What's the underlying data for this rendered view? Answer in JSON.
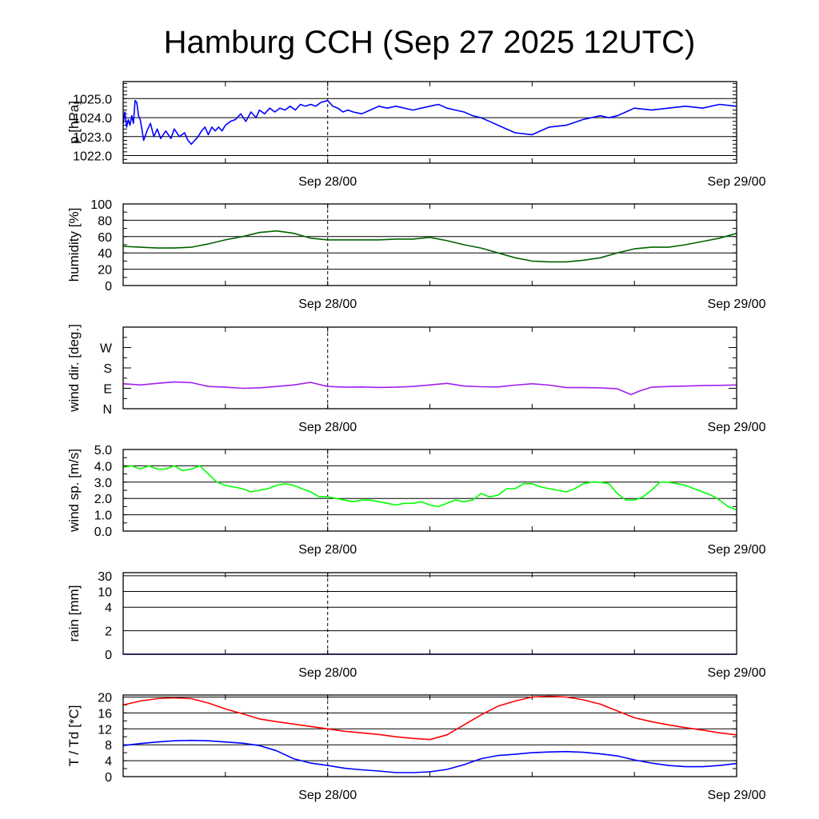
{
  "title": "Hamburg CCH (Sep 27 2025 12UTC)",
  "x_tick_labels": [
    "Sep 28/00",
    "Sep 29/00"
  ],
  "chart_data": [
    {
      "type": "line",
      "ylabel": "p [hPa]",
      "x_unit": "hours after Sep 27 12UTC",
      "xlim": [
        0,
        36
      ],
      "ylim": [
        1021.6,
        1025.9
      ],
      "yticks": [
        1022.0,
        1023.0,
        1024.0,
        1025.0
      ],
      "ytick_labels": [
        "1022.0",
        "1023.0",
        "1024.0",
        "1025.0"
      ],
      "grid": true,
      "series": [
        {
          "color": "#0000ff",
          "x": [
            0,
            0.1,
            0.2,
            0.3,
            0.4,
            0.5,
            0.6,
            0.7,
            0.8,
            0.9,
            1.0,
            1.1,
            1.2,
            1.4,
            1.6,
            1.8,
            2.0,
            2.2,
            2.5,
            2.8,
            3.0,
            3.3,
            3.6,
            3.8,
            4.0,
            4.2,
            4.4,
            4.6,
            4.8,
            5.0,
            5.2,
            5.4,
            5.6,
            5.8,
            6.0,
            6.3,
            6.6,
            6.9,
            7.2,
            7.5,
            7.8,
            8.0,
            8.3,
            8.6,
            8.9,
            9.2,
            9.5,
            9.8,
            10.1,
            10.4,
            10.7,
            11.0,
            11.3,
            11.6,
            12.0,
            12.3,
            12.6,
            12.9,
            13.2,
            13.5,
            14.0,
            14.5,
            15.0,
            15.5,
            16.0,
            16.5,
            17.0,
            17.5,
            18.0,
            18.5,
            19.0,
            19.5,
            20.0,
            20.5,
            21.0,
            21.5,
            22.0,
            23.0,
            24.0,
            25.0,
            26.0,
            27.0,
            28.0,
            28.5,
            29.0,
            29.5,
            30.0,
            31.0,
            32.0,
            33.0,
            34.0,
            35.0,
            36.0
          ],
          "y": [
            1023.7,
            1024.3,
            1023.5,
            1023.9,
            1023.6,
            1024.1,
            1023.7,
            1024.9,
            1024.8,
            1024.1,
            1023.9,
            1023.4,
            1022.8,
            1023.3,
            1023.7,
            1023.0,
            1023.4,
            1022.9,
            1023.3,
            1022.9,
            1023.4,
            1023.0,
            1023.2,
            1022.8,
            1022.6,
            1022.8,
            1023.0,
            1023.3,
            1023.5,
            1023.1,
            1023.5,
            1023.3,
            1023.5,
            1023.3,
            1023.6,
            1023.8,
            1023.9,
            1024.2,
            1023.8,
            1024.3,
            1024.0,
            1024.4,
            1024.2,
            1024.5,
            1024.3,
            1024.5,
            1024.4,
            1024.6,
            1024.4,
            1024.7,
            1024.6,
            1024.7,
            1024.6,
            1024.8,
            1024.9,
            1024.6,
            1024.5,
            1024.3,
            1024.4,
            1024.3,
            1024.2,
            1024.4,
            1024.6,
            1024.5,
            1024.6,
            1024.5,
            1024.4,
            1024.5,
            1024.6,
            1024.7,
            1024.5,
            1024.4,
            1024.3,
            1024.1,
            1024.0,
            1023.8,
            1023.6,
            1023.2,
            1023.1,
            1023.5,
            1023.6,
            1023.9,
            1024.1,
            1024.0,
            1024.1,
            1024.3,
            1024.5,
            1024.4,
            1024.5,
            1024.6,
            1024.5,
            1024.7,
            1024.6
          ]
        }
      ]
    },
    {
      "type": "line",
      "ylabel": "humidity [%]",
      "x_unit": "hours after Sep 27 12UTC",
      "xlim": [
        0,
        36
      ],
      "ylim": [
        0,
        100
      ],
      "yticks": [
        0,
        20,
        40,
        60,
        80,
        100
      ],
      "ytick_labels": [
        "0",
        "20",
        "40",
        "60",
        "80",
        "100"
      ],
      "grid": true,
      "series": [
        {
          "color": "#006400",
          "x": [
            0,
            1,
            2,
            3,
            4,
            5,
            6,
            7,
            8,
            9,
            10,
            11,
            12,
            13,
            14,
            15,
            16,
            17,
            18,
            19,
            20,
            21,
            22,
            23,
            24,
            25,
            26,
            27,
            28,
            29,
            30,
            31,
            32,
            33,
            34,
            35,
            36
          ],
          "y": [
            48,
            47,
            46,
            46,
            47,
            51,
            56,
            60,
            65,
            67,
            64,
            58,
            56,
            56,
            56,
            56,
            57,
            57,
            59,
            55,
            50,
            46,
            40,
            34,
            30,
            29,
            29,
            31,
            34,
            40,
            45,
            47,
            47,
            50,
            54,
            58,
            64
          ]
        }
      ]
    },
    {
      "type": "line",
      "ylabel": "wind dir. [deg.]",
      "x_unit": "hours after Sep 27 12UTC",
      "xlim": [
        0,
        36
      ],
      "ylim": [
        0,
        360
      ],
      "yticks": [
        0,
        90,
        180,
        270
      ],
      "ytick_labels": [
        "N",
        "E",
        "S",
        "W"
      ],
      "grid": false,
      "series": [
        {
          "color": "#a020f0",
          "x": [
            0,
            1,
            2,
            3,
            4,
            5,
            6,
            7,
            8,
            9,
            10,
            11,
            12,
            13,
            14,
            15,
            16,
            17,
            18,
            19,
            20,
            21,
            22,
            23,
            24,
            25,
            26,
            27,
            28,
            29,
            29.8,
            30.3,
            31,
            32,
            33,
            34,
            35,
            36
          ],
          "y": [
            110,
            105,
            112,
            118,
            115,
            98,
            95,
            90,
            92,
            98,
            105,
            116,
            98,
            95,
            96,
            94,
            95,
            98,
            105,
            112,
            100,
            97,
            96,
            104,
            110,
            104,
            93,
            93,
            92,
            88,
            62,
            78,
            95,
            98,
            100,
            102,
            103,
            105
          ]
        }
      ]
    },
    {
      "type": "line",
      "ylabel": "wind sp. [m/s]",
      "x_unit": "hours after Sep 27 12UTC",
      "xlim": [
        0,
        36
      ],
      "ylim": [
        0,
        5
      ],
      "yticks": [
        0,
        1,
        2,
        3,
        4,
        5
      ],
      "ytick_labels": [
        "0.0",
        "1.0",
        "2.0",
        "3.0",
        "4.0",
        "5.0"
      ],
      "grid": true,
      "series": [
        {
          "color": "#00ff00",
          "x": [
            0,
            0.5,
            1,
            1.5,
            2,
            2.5,
            3,
            3.5,
            4,
            4.5,
            5,
            5.5,
            6,
            6.5,
            7,
            7.5,
            8,
            8.5,
            9,
            9.5,
            10,
            10.5,
            11,
            11.5,
            12,
            12.5,
            13,
            13.5,
            14,
            14.5,
            15,
            15.5,
            16,
            16.5,
            17,
            17.5,
            18,
            18.5,
            19,
            19.5,
            20,
            20.5,
            21,
            21.5,
            22,
            22.5,
            23,
            23.5,
            24,
            24.5,
            25,
            25.5,
            26,
            26.5,
            27,
            27.5,
            28,
            28.5,
            29,
            29.5,
            30,
            30.5,
            31,
            31.5,
            32,
            32.5,
            33,
            33.5,
            34,
            34.5,
            35,
            35.5,
            36
          ],
          "y": [
            3.9,
            4.0,
            3.8,
            4.0,
            3.8,
            3.8,
            4.0,
            3.7,
            3.8,
            4.0,
            3.5,
            3.0,
            2.8,
            2.7,
            2.6,
            2.4,
            2.5,
            2.6,
            2.8,
            2.9,
            2.8,
            2.6,
            2.4,
            2.1,
            2.1,
            2.0,
            1.9,
            1.8,
            1.9,
            1.9,
            1.8,
            1.7,
            1.6,
            1.7,
            1.7,
            1.8,
            1.6,
            1.5,
            1.7,
            1.9,
            1.8,
            1.9,
            2.3,
            2.1,
            2.2,
            2.6,
            2.6,
            2.9,
            2.9,
            2.7,
            2.6,
            2.5,
            2.4,
            2.6,
            2.9,
            3.0,
            3.0,
            2.9,
            2.3,
            1.9,
            1.9,
            2.1,
            2.5,
            3.0,
            3.0,
            2.9,
            2.8,
            2.6,
            2.4,
            2.2,
            1.9,
            1.5,
            1.3
          ]
        }
      ]
    },
    {
      "type": "line",
      "ylabel": "rain [mm]",
      "x_unit": "hours after Sep 27 12UTC",
      "xlim": [
        0,
        36
      ],
      "ylim": [
        0,
        35
      ],
      "yticks": [
        0,
        2,
        4,
        10,
        30
      ],
      "ytick_labels": [
        "0",
        "2",
        "4",
        "10",
        "30"
      ],
      "grid": true,
      "series": [
        {
          "color": "#0000ff",
          "x": [
            0,
            36
          ],
          "y": [
            0,
            0
          ]
        }
      ]
    },
    {
      "type": "line",
      "ylabel": "T / Td [*C]",
      "x_unit": "hours after Sep 27 12UTC",
      "xlim": [
        0,
        36
      ],
      "ylim": [
        0,
        20.5
      ],
      "yticks": [
        0,
        4,
        8,
        12,
        16,
        20
      ],
      "ytick_labels": [
        "0",
        "4",
        "8",
        "12",
        "16",
        "20"
      ],
      "grid": true,
      "series": [
        {
          "color": "#ff0000",
          "x": [
            0,
            1,
            2,
            3,
            4,
            5,
            6,
            7,
            8,
            9,
            10,
            11,
            12,
            13,
            14,
            15,
            16,
            17,
            18,
            19,
            20,
            21,
            22,
            23,
            24,
            25,
            26,
            27,
            28,
            29,
            30,
            31,
            32,
            33,
            34,
            35,
            36
          ],
          "y": [
            18.0,
            19.0,
            19.6,
            19.8,
            19.6,
            18.5,
            17.0,
            15.8,
            14.5,
            13.8,
            13.2,
            12.6,
            12.0,
            11.4,
            11.0,
            10.6,
            10.0,
            9.6,
            9.3,
            10.5,
            13.0,
            15.5,
            17.7,
            19.0,
            20.0,
            20.2,
            20.0,
            19.3,
            18.2,
            16.5,
            14.8,
            13.8,
            13.0,
            12.3,
            11.7,
            11.0,
            10.5
          ]
        },
        {
          "color": "#0000ff",
          "x": [
            0,
            1,
            2,
            3,
            4,
            5,
            6,
            7,
            8,
            9,
            10,
            11,
            12,
            13,
            14,
            15,
            16,
            17,
            18,
            19,
            20,
            21,
            22,
            23,
            24,
            25,
            26,
            27,
            28,
            29,
            30,
            31,
            32,
            33,
            34,
            35,
            36
          ],
          "y": [
            7.8,
            8.3,
            8.7,
            9.0,
            9.1,
            9.0,
            8.7,
            8.4,
            7.8,
            6.5,
            4.5,
            3.4,
            2.8,
            2.1,
            1.7,
            1.4,
            1.0,
            1.0,
            1.2,
            1.8,
            3.0,
            4.5,
            5.3,
            5.6,
            6.0,
            6.2,
            6.3,
            6.1,
            5.7,
            5.2,
            4.2,
            3.4,
            2.8,
            2.5,
            2.5,
            2.8,
            3.3
          ]
        }
      ]
    }
  ]
}
